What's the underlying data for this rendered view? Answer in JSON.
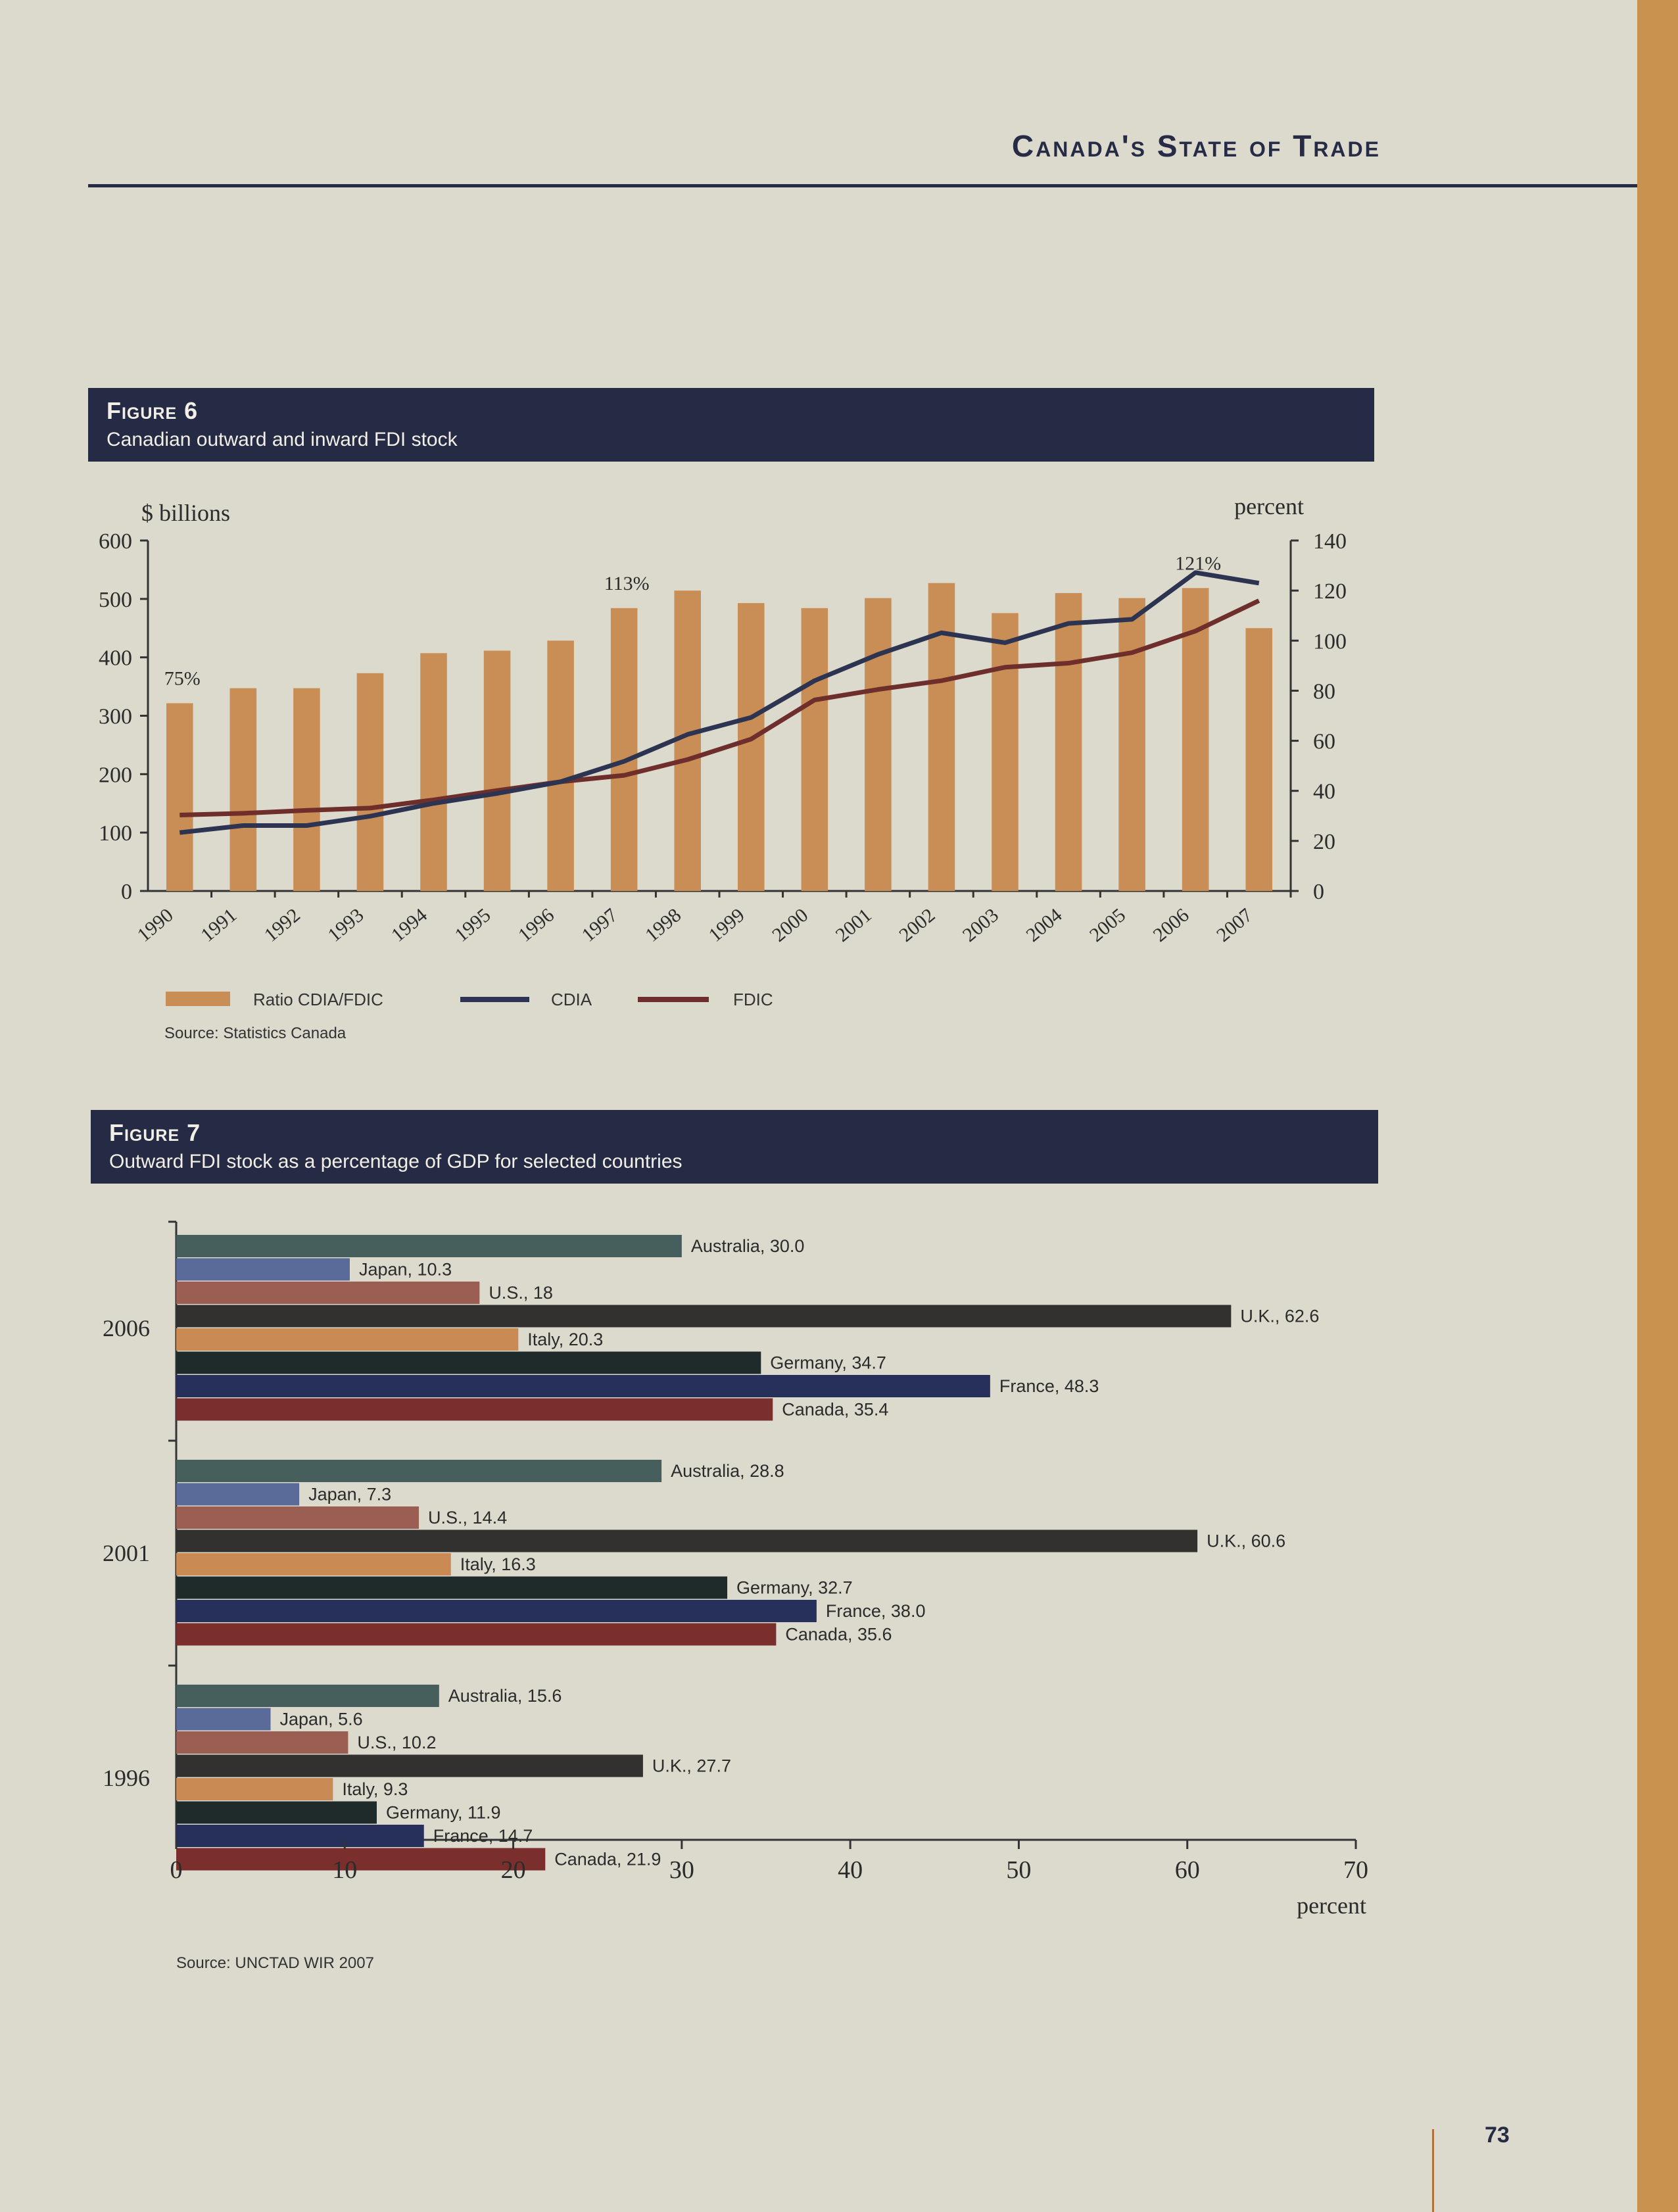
{
  "header": {
    "running_title": "Canada's State of Trade"
  },
  "page_number": "73",
  "colors": {
    "navy": "#262b45",
    "tan_bar": "#c98e55",
    "cdia_line": "#2c3452",
    "fdic_line": "#6e2f2c",
    "australia": "#465f5c",
    "japan": "#5a6b99",
    "us": "#9a5f52",
    "uk": "#33312f",
    "italy": "#c98a54",
    "germany": "#1f2a2a",
    "france": "#27305a",
    "canada": "#7a2f2c"
  },
  "figure6": {
    "label": "Figure 6",
    "caption": "Canadian outward and inward FDI stock",
    "source": "Source: Statistics Canada",
    "chart_data": {
      "type": "bar",
      "title": "Canadian outward and inward FDI stock",
      "years": [
        "1990",
        "1991",
        "1992",
        "1993",
        "1994",
        "1995",
        "1996",
        "1997",
        "1998",
        "1999",
        "2000",
        "2001",
        "2002",
        "2003",
        "2004",
        "2005",
        "2006",
        "2007"
      ],
      "left_axis": {
        "label": "$ billions",
        "range": [
          0,
          600
        ],
        "ticks": [
          "0",
          "100",
          "200",
          "300",
          "400",
          "500",
          "600"
        ]
      },
      "right_axis": {
        "label": "percent",
        "range": [
          0,
          140
        ],
        "ticks": [
          "0",
          "20",
          "40",
          "60",
          "80",
          "100",
          "120",
          "140"
        ]
      },
      "series": [
        {
          "name": "Ratio CDIA/FDIC",
          "type": "bar",
          "axis": "right",
          "values": [
            75,
            81,
            81,
            87,
            95,
            96,
            100,
            113,
            120,
            115,
            113,
            117,
            123,
            111,
            119,
            117,
            121,
            105
          ]
        },
        {
          "name": "CDIA",
          "type": "line",
          "axis": "left",
          "values": [
            100,
            112,
            112,
            128,
            150,
            167,
            187,
            222,
            268,
            297,
            360,
            405,
            442,
            425,
            458,
            465,
            545,
            527
          ]
        },
        {
          "name": "FDIC",
          "type": "line",
          "axis": "left",
          "values": [
            130,
            133,
            138,
            142,
            156,
            172,
            187,
            198,
            225,
            260,
            327,
            345,
            360,
            383,
            390,
            408,
            445,
            497
          ]
        }
      ],
      "annotations": [
        {
          "year": "1990",
          "text": "75%"
        },
        {
          "year": "1997",
          "text": "113%"
        },
        {
          "year": "2006",
          "text": "121%"
        }
      ],
      "legend_position": "bottom"
    }
  },
  "figure7": {
    "label": "Figure 7",
    "caption": "Outward FDI stock as a percentage of GDP for selected countries",
    "source": "Source: UNCTAD WIR 2007",
    "chart_data": {
      "type": "bar",
      "orientation": "horizontal",
      "xlabel": "percent",
      "xlim": [
        0,
        70
      ],
      "xticks": [
        "0",
        "10",
        "20",
        "30",
        "40",
        "50",
        "60",
        "70"
      ],
      "groups": [
        {
          "year": "2006",
          "bars": [
            {
              "country": "Australia",
              "value": 30.0,
              "label": "Australia, 30.0"
            },
            {
              "country": "Japan",
              "value": 10.3,
              "label": "Japan, 10.3"
            },
            {
              "country": "U.S.",
              "value": 18,
              "label": "U.S., 18"
            },
            {
              "country": "U.K.",
              "value": 62.6,
              "label": "U.K., 62.6"
            },
            {
              "country": "Italy",
              "value": 20.3,
              "label": "Italy, 20.3"
            },
            {
              "country": "Germany",
              "value": 34.7,
              "label": "Germany, 34.7"
            },
            {
              "country": "France",
              "value": 48.3,
              "label": "France, 48.3"
            },
            {
              "country": "Canada",
              "value": 35.4,
              "label": "Canada, 35.4"
            }
          ]
        },
        {
          "year": "2001",
          "bars": [
            {
              "country": "Australia",
              "value": 28.8,
              "label": "Australia, 28.8"
            },
            {
              "country": "Japan",
              "value": 7.3,
              "label": "Japan, 7.3"
            },
            {
              "country": "U.S.",
              "value": 14.4,
              "label": "U.S., 14.4"
            },
            {
              "country": "U.K.",
              "value": 60.6,
              "label": "U.K., 60.6"
            },
            {
              "country": "Italy",
              "value": 16.3,
              "label": "Italy, 16.3"
            },
            {
              "country": "Germany",
              "value": 32.7,
              "label": "Germany, 32.7"
            },
            {
              "country": "France",
              "value": 38.0,
              "label": "France, 38.0"
            },
            {
              "country": "Canada",
              "value": 35.6,
              "label": "Canada, 35.6"
            }
          ]
        },
        {
          "year": "1996",
          "bars": [
            {
              "country": "Australia",
              "value": 15.6,
              "label": "Australia, 15.6"
            },
            {
              "country": "Japan",
              "value": 5.6,
              "label": "Japan, 5.6"
            },
            {
              "country": "U.S.",
              "value": 10.2,
              "label": "U.S., 10.2"
            },
            {
              "country": "U.K.",
              "value": 27.7,
              "label": "U.K., 27.7"
            },
            {
              "country": "Italy",
              "value": 9.3,
              "label": "Italy, 9.3"
            },
            {
              "country": "Germany",
              "value": 11.9,
              "label": "Germany, 11.9"
            },
            {
              "country": "France",
              "value": 14.7,
              "label": "France, 14.7"
            },
            {
              "country": "Canada",
              "value": 21.9,
              "label": "Canada, 21.9"
            }
          ]
        }
      ]
    }
  }
}
